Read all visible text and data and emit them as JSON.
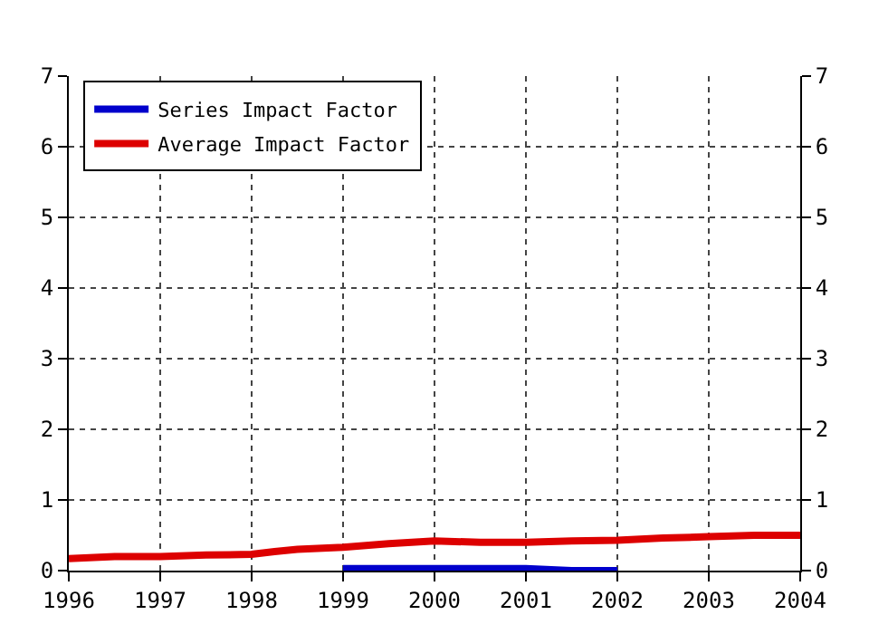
{
  "chart_data": {
    "type": "line",
    "x": [
      1996,
      1996.5,
      1997,
      1997.5,
      1998,
      1998.25,
      1998.5,
      1999,
      1999.5,
      2000,
      2000.5,
      2001,
      2001.5,
      2002,
      2002.5,
      2003,
      2003.5,
      2004
    ],
    "series": [
      {
        "name": "Series Impact Factor",
        "color": "#0000cc",
        "x": [
          1999,
          1999.5,
          2000,
          2000.5,
          2001,
          2001.5,
          2002
        ],
        "values": [
          0.03,
          0.03,
          0.03,
          0.03,
          0.03,
          0.0,
          0.0
        ]
      },
      {
        "name": "Average Impact Factor",
        "color": "#dd0000",
        "values": [
          0.17,
          0.2,
          0.2,
          0.22,
          0.23,
          0.27,
          0.3,
          0.33,
          0.38,
          0.42,
          0.4,
          0.4,
          0.42,
          0.43,
          0.46,
          0.48,
          0.5,
          0.5
        ]
      }
    ],
    "xlim": [
      1996,
      2004
    ],
    "xticks": [
      1996,
      1997,
      1998,
      1999,
      2000,
      2001,
      2002,
      2003,
      2004
    ],
    "ylim": [
      0,
      7
    ],
    "yticks": [
      0,
      1,
      2,
      3,
      4,
      5,
      6,
      7
    ],
    "y2lim": [
      0,
      7
    ],
    "y2ticks": [
      0,
      1,
      2,
      3,
      4,
      5,
      6,
      7
    ],
    "grid": true,
    "legend": "top left",
    "line_style": "solid",
    "marker": "none"
  }
}
